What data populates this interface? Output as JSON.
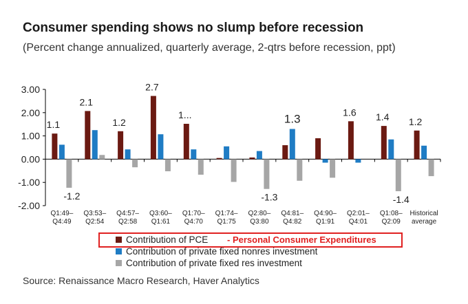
{
  "title": "Consumer spending shows no slump before recession",
  "subtitle": "(Percent change annualized, quarterly average, 2-qtrs before recession, ppt)",
  "source": "Source: Renaissance Macro Research, Haver Analytics",
  "callout": "- Personal Consumer Expenditures",
  "colors": {
    "pce": "#6b1a12",
    "nonres": "#1f7cc4",
    "res": "#a6a6a6",
    "callout": "#e02020"
  },
  "chart_data": {
    "type": "bar",
    "categories": [
      [
        "Q1:49–",
        "Q4:49"
      ],
      [
        "Q3:53–",
        "Q2:54"
      ],
      [
        "Q4:57–",
        "Q2:58"
      ],
      [
        "Q3:60–",
        "Q1:61"
      ],
      [
        "Q1:70–",
        "Q4:70"
      ],
      [
        "Q1:74–",
        "Q1:75"
      ],
      [
        "Q2:80–",
        "Q3:80"
      ],
      [
        "Q4:81–",
        "Q4:82"
      ],
      [
        "Q4:90–",
        "Q1:91"
      ],
      [
        "Q2:01–",
        "Q4:01"
      ],
      [
        "Q1:08–",
        "Q2:09"
      ],
      [
        "Historical",
        "average"
      ]
    ],
    "series": [
      {
        "name": "Contribution of PCE",
        "values": [
          1.1,
          2.07,
          1.2,
          2.72,
          1.52,
          0.05,
          0.07,
          0.6,
          0.9,
          1.63,
          1.43,
          1.23
        ]
      },
      {
        "name": "Contribution of private fixed nonres investment",
        "values": [
          0.62,
          1.25,
          0.42,
          1.07,
          0.42,
          0.55,
          0.35,
          1.3,
          -0.15,
          -0.15,
          0.85,
          0.58
        ]
      },
      {
        "name": "Contribution of private fixed res investment",
        "values": [
          -1.23,
          0.18,
          -0.35,
          -0.52,
          -0.67,
          -0.98,
          -1.28,
          -0.93,
          -0.8,
          0.0,
          -1.38,
          -0.73
        ]
      }
    ],
    "annotations": [
      {
        "category": 0,
        "series": 0,
        "text": "1.1"
      },
      {
        "category": 0,
        "series": 2,
        "text": "-1.2"
      },
      {
        "category": 1,
        "series": 0,
        "text": "2.1"
      },
      {
        "category": 2,
        "series": 0,
        "text": "1.2"
      },
      {
        "category": 3,
        "series": 0,
        "text": "2.7"
      },
      {
        "category": 4,
        "series": 0,
        "text": "1..."
      },
      {
        "category": 6,
        "series": 2,
        "text": "-1.3"
      },
      {
        "category": 7,
        "series": 1,
        "text": "1.3",
        "large": true
      },
      {
        "category": 9,
        "series": 0,
        "text": "1.6"
      },
      {
        "category": 10,
        "series": 0,
        "text": "1.4"
      },
      {
        "category": 10,
        "series": 2,
        "text": "-1.4"
      },
      {
        "category": 11,
        "series": 0,
        "text": "1.2"
      }
    ],
    "yticks": [
      "3.00",
      "2.00",
      "1.00",
      "0.00",
      "-1.00",
      "-2.00"
    ],
    "ylim": [
      -2.0,
      3.0
    ],
    "legend_position": "bottom-left",
    "grid": false
  }
}
